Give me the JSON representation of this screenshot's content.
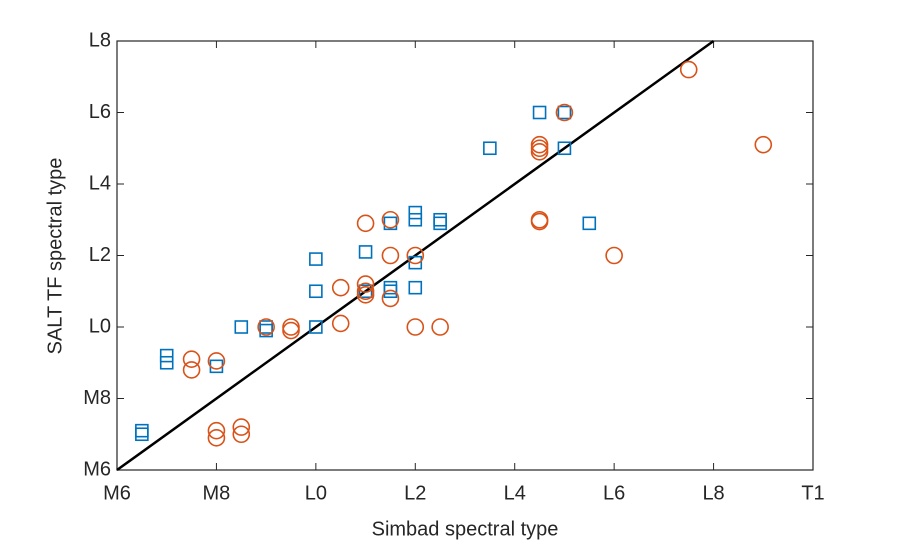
{
  "chart_data": {
    "type": "scatter",
    "xlabel": "Simbad spectral type",
    "ylabel": "SALT TF spectral type",
    "xlim": [
      6,
      20
    ],
    "ylim": [
      6,
      18
    ],
    "xticks": [
      {
        "value": 6,
        "label": "M6"
      },
      {
        "value": 8,
        "label": "M8"
      },
      {
        "value": 10,
        "label": "L0"
      },
      {
        "value": 12,
        "label": "L2"
      },
      {
        "value": 14,
        "label": "L4"
      },
      {
        "value": 16,
        "label": "L6"
      },
      {
        "value": 18,
        "label": "L8"
      },
      {
        "value": 20,
        "label": "T1"
      }
    ],
    "yticks": [
      {
        "value": 6,
        "label": "M6"
      },
      {
        "value": 8,
        "label": "M8"
      },
      {
        "value": 10,
        "label": "L0"
      },
      {
        "value": 12,
        "label": "L2"
      },
      {
        "value": 14,
        "label": "L4"
      },
      {
        "value": 16,
        "label": "L6"
      },
      {
        "value": 18,
        "label": "L8"
      }
    ],
    "series": [
      {
        "marker": "square",
        "color": "#0072BD",
        "x": [
          6.5,
          6.5,
          7.0,
          7.0,
          8.0,
          8.5,
          9.0,
          9.0,
          10.0,
          10.0,
          10.0,
          11.0,
          11.0,
          11.5,
          11.5,
          11.5,
          12.0,
          12.0,
          12.0,
          12.0,
          12.5,
          12.5,
          13.5,
          14.5,
          15.0,
          15.0,
          15.5
        ],
        "values": [
          7.1,
          7.0,
          9.2,
          9.0,
          8.9,
          10.0,
          10.0,
          9.9,
          11.9,
          11.0,
          10.0,
          12.1,
          11.0,
          12.9,
          11.1,
          11.0,
          13.2,
          13.0,
          11.8,
          11.1,
          13.0,
          12.9,
          15.0,
          16.0,
          16.0,
          15.0,
          12.9
        ]
      },
      {
        "marker": "circle",
        "color": "#D95319",
        "x": [
          7.5,
          7.5,
          8.0,
          8.0,
          8.0,
          8.5,
          8.5,
          9.0,
          9.5,
          9.5,
          10.5,
          10.5,
          11.0,
          11.0,
          11.0,
          11.0,
          11.5,
          11.5,
          11.5,
          12.0,
          12.0,
          12.5,
          14.5,
          14.5,
          14.5,
          14.5,
          14.5,
          15.0,
          16.0,
          17.5,
          19.0
        ],
        "values": [
          9.1,
          8.8,
          9.05,
          7.1,
          6.9,
          7.2,
          7.0,
          10.0,
          10.0,
          9.9,
          11.1,
          10.1,
          12.9,
          11.2,
          11.0,
          10.9,
          13.0,
          12.0,
          10.8,
          12.0,
          10.0,
          10.0,
          15.1,
          15.0,
          14.9,
          13.0,
          12.95,
          16.0,
          12.0,
          17.2,
          15.1
        ]
      }
    ]
  }
}
